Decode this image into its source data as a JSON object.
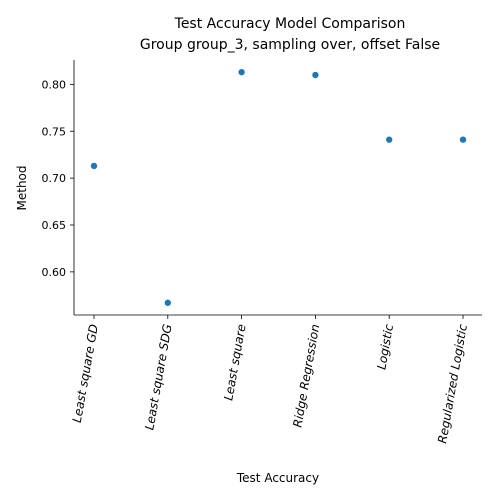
{
  "chart_data": {
    "type": "scatter",
    "title": "Test Accuracy Model Comparison",
    "subtitle": "Group group_3, sampling over, offset False",
    "xlabel": "Test Accuracy",
    "ylabel": "Method",
    "categories": [
      "Least square GD",
      "Least square SDG",
      "Least square",
      "Ridge Regression",
      "Logistic",
      "Regularized Logistic"
    ],
    "values": [
      0.713,
      0.567,
      0.813,
      0.81,
      0.741,
      0.741
    ],
    "ylim": [
      0.554,
      0.826
    ],
    "yticks": [
      0.6,
      0.65,
      0.7,
      0.75,
      0.8
    ],
    "ytick_labels": [
      "0.60",
      "0.65",
      "0.70",
      "0.75",
      "0.80"
    ],
    "grid": false,
    "legend": "none",
    "point_color": "#1f77b4"
  }
}
